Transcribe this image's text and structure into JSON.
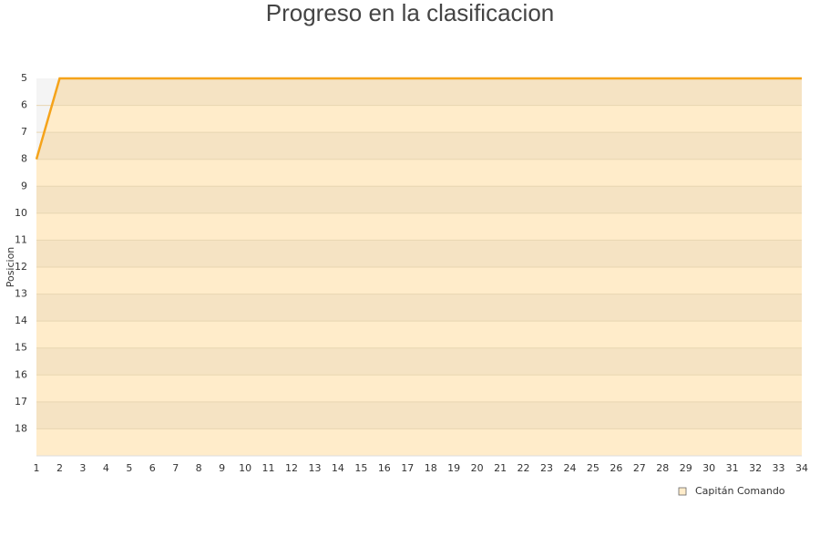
{
  "chart_data": {
    "type": "line",
    "title": "Progreso en la clasificacion",
    "y_label": "Posicion",
    "x": [
      1,
      2,
      3,
      4,
      5,
      6,
      7,
      8,
      9,
      10,
      11,
      12,
      13,
      14,
      15,
      16,
      17,
      18,
      19,
      20,
      21,
      22,
      23,
      24,
      25,
      26,
      27,
      28,
      29,
      30,
      31,
      32,
      33,
      34
    ],
    "series": [
      {
        "name": "Capitán Comando",
        "color": "#f5a31a",
        "values": [
          8,
          5,
          5,
          5,
          5,
          5,
          5,
          5,
          5,
          5,
          5,
          5,
          5,
          5,
          5,
          5,
          5,
          5,
          5,
          5,
          5,
          5,
          5,
          5,
          5,
          5,
          5,
          5,
          5,
          5,
          5,
          5,
          5,
          5
        ]
      }
    ],
    "xlim": [
      1,
      34
    ],
    "xticks": [
      1,
      2,
      3,
      4,
      5,
      6,
      7,
      8,
      9,
      10,
      11,
      12,
      13,
      14,
      15,
      16,
      17,
      18,
      19,
      20,
      21,
      22,
      23,
      24,
      25,
      26,
      27,
      28,
      29,
      30,
      31,
      32,
      33,
      34
    ],
    "ylim": [
      5,
      19
    ],
    "yticks": [
      5,
      6,
      7,
      8,
      9,
      10,
      11,
      12,
      13,
      14,
      15,
      16,
      17,
      18
    ],
    "y_reversed": true,
    "grid": true,
    "legend": "bottom-right"
  }
}
